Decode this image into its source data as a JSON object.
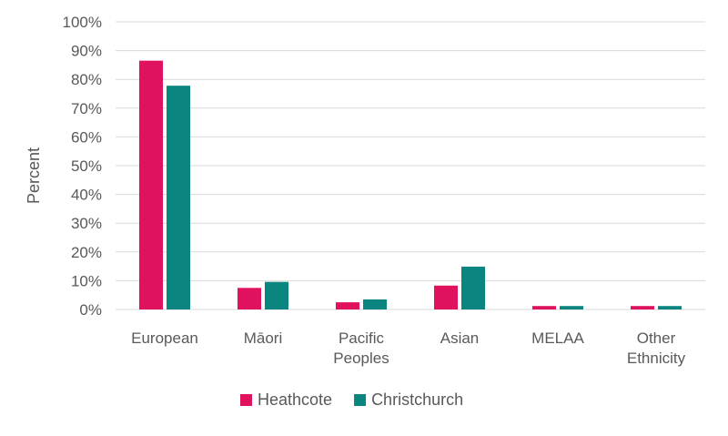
{
  "chart_data": {
    "type": "bar",
    "title": "",
    "xlabel": "",
    "ylabel": "Percent",
    "ylim": [
      0,
      100
    ],
    "yticks": [
      0,
      10,
      20,
      30,
      40,
      50,
      60,
      70,
      80,
      90,
      100
    ],
    "ytick_labels": [
      "0%",
      "10%",
      "20%",
      "30%",
      "40%",
      "50%",
      "60%",
      "70%",
      "80%",
      "90%",
      "100%"
    ],
    "categories": [
      [
        "European"
      ],
      [
        "Māori"
      ],
      [
        "Pacific",
        "Peoples"
      ],
      [
        "Asian"
      ],
      [
        "MELAA"
      ],
      [
        "Other",
        "Ethnicity"
      ]
    ],
    "series": [
      {
        "name": "Heathcote",
        "color": "#e0115f",
        "values": [
          86.5,
          7.5,
          2.5,
          8.3,
          1.2,
          1.2
        ]
      },
      {
        "name": "Christchurch",
        "color": "#0b8580",
        "values": [
          77.8,
          9.6,
          3.5,
          14.9,
          1.2,
          1.2
        ]
      }
    ],
    "grid": true,
    "legend": "bottom"
  }
}
